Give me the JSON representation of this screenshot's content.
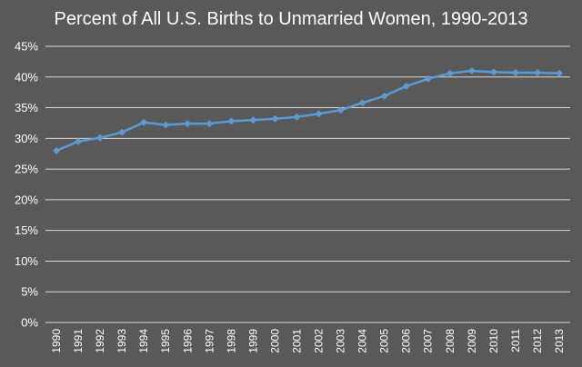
{
  "chart_data": {
    "type": "line",
    "title": "Percent of All U.S. Births to Unmarried Women, 1990-2013",
    "xlabel": "",
    "ylabel": "",
    "x": [
      "1990",
      "1991",
      "1992",
      "1993",
      "1994",
      "1995",
      "1996",
      "1997",
      "1998",
      "1999",
      "2000",
      "2001",
      "2002",
      "2003",
      "2004",
      "2005",
      "2006",
      "2007",
      "2008",
      "2009",
      "2010",
      "2011",
      "2012",
      "2013"
    ],
    "series": [
      {
        "values": [
          28.0,
          29.5,
          30.1,
          31.0,
          32.6,
          32.2,
          32.4,
          32.4,
          32.8,
          33.0,
          33.2,
          33.5,
          34.0,
          34.6,
          35.8,
          36.9,
          38.5,
          39.7,
          40.6,
          41.0,
          40.8,
          40.7,
          40.7,
          40.6
        ]
      }
    ],
    "ylim": [
      0,
      45
    ],
    "yticks": [
      "0%",
      "5%",
      "10%",
      "15%",
      "20%",
      "25%",
      "30%",
      "35%",
      "40%",
      "45%"
    ],
    "grid": true,
    "legend": "none",
    "colors": {
      "line": "#5B9BD5",
      "background": "#595959",
      "grid": "#d9d9d9",
      "text": "#ffffff"
    }
  }
}
